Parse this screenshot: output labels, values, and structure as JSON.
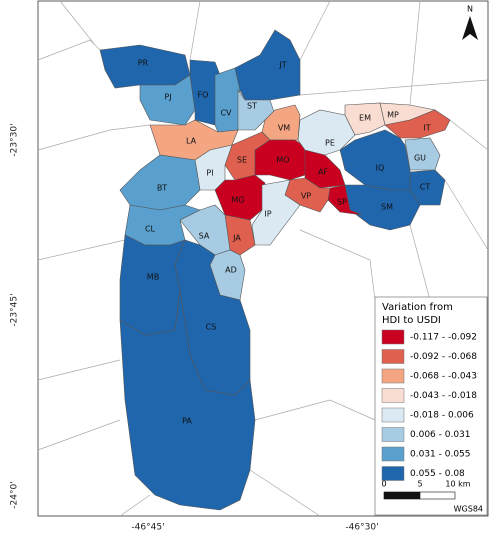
{
  "map": {
    "regions": [
      {
        "label": "PR",
        "class": 7
      },
      {
        "label": "PJ",
        "class": 6
      },
      {
        "label": "FO",
        "class": 7
      },
      {
        "label": "CV",
        "class": 6
      },
      {
        "label": "JT",
        "class": 7
      },
      {
        "label": "ST",
        "class": 5
      },
      {
        "label": "VM",
        "class": 2
      },
      {
        "label": "LA",
        "class": 2
      },
      {
        "label": "SE",
        "class": 1
      },
      {
        "label": "MO",
        "class": 0
      },
      {
        "label": "AF",
        "class": 0
      },
      {
        "label": "PE",
        "class": 4
      },
      {
        "label": "EM",
        "class": 3
      },
      {
        "label": "MP",
        "class": 3
      },
      {
        "label": "IT",
        "class": 1
      },
      {
        "label": "GU",
        "class": 5
      },
      {
        "label": "CT",
        "class": 7
      },
      {
        "label": "IQ",
        "class": 7
      },
      {
        "label": "SM",
        "class": 7
      },
      {
        "label": "SP",
        "class": 0
      },
      {
        "label": "VP",
        "class": 1
      },
      {
        "label": "MG",
        "class": 0
      },
      {
        "label": "PI",
        "class": 4
      },
      {
        "label": "BT",
        "class": 6
      },
      {
        "label": "IP",
        "class": 4
      },
      {
        "label": "JA",
        "class": 1
      },
      {
        "label": "SA",
        "class": 5
      },
      {
        "label": "CL",
        "class": 6
      },
      {
        "label": "AD",
        "class": 5
      },
      {
        "label": "MB",
        "class": 7
      },
      {
        "label": "CS",
        "class": 7
      },
      {
        "label": "PA",
        "class": 7
      }
    ],
    "legend": {
      "title": [
        "Variation from",
        "HDI to USDI"
      ],
      "items": [
        {
          "label": "-0.117 - -0.092",
          "color": "#ca0020"
        },
        {
          "label": "-0.092 - -0.068",
          "color": "#e0604f"
        },
        {
          "label": "-0.068 - -0.043",
          "color": "#f4a582"
        },
        {
          "label": "-0.043 - -0.018",
          "color": "#f9ddd2"
        },
        {
          "label": "-0.018 - 0.006",
          "color": "#dbe9f3"
        },
        {
          "label": "0.006 - 0.031",
          "color": "#a6cbe3"
        },
        {
          "label": "0.031 - 0.055",
          "color": "#5aa0cf"
        },
        {
          "label": "0.055 - 0.08",
          "color": "#1f66ad"
        }
      ]
    },
    "lat_labels": [
      "-23°30'",
      "-23°45'",
      "-24°0'"
    ],
    "lon_labels": [
      "-46°45'",
      "-46°30'"
    ],
    "scale": [
      "0",
      "5",
      "10 km"
    ],
    "north": "N",
    "crs": "WGS84"
  }
}
